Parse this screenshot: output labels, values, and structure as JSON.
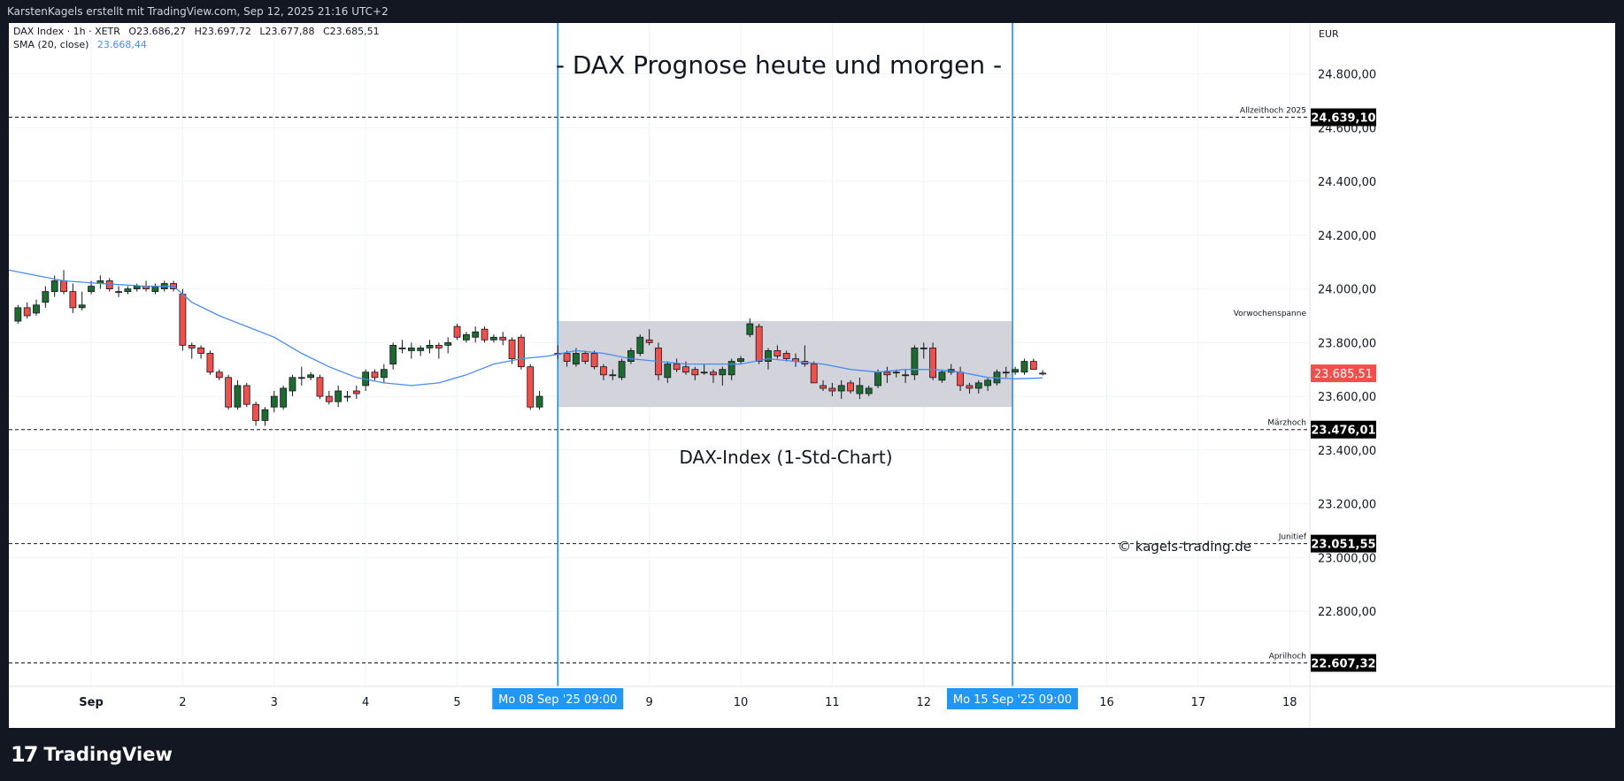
{
  "header": {
    "attribution": "KarstenKagels erstellt mit TradingView.com, Sep 12, 2025 21:16 UTC+2"
  },
  "legend": {
    "symbol": "DAX Index · 1h · XETR",
    "open": "O23.686,27",
    "high": "H23.697,72",
    "low": "L23.677,88",
    "close": "C23.685,51",
    "sma_label": "SMA (20, close)",
    "sma_value": "23.668,44"
  },
  "annotations": {
    "title": "- DAX Prognose heute und morgen -",
    "subtitle": "DAX-Index (1-Std-Chart)",
    "copyright": "© kagels-trading.de"
  },
  "footer": {
    "logo": "17",
    "brand": "TradingView"
  },
  "colors": {
    "up": "#1e6b30",
    "down": "#f0504b",
    "sma": "#4a8cf0",
    "range_box": "#d1d1d9",
    "vertical_line": "#1e88e5",
    "label_bg": "#2196f3"
  },
  "chart_data": {
    "type": "candlestick",
    "title": "- DAX Prognose heute und morgen -",
    "currency": "EUR",
    "ylim": [
      22520,
      24990
    ],
    "y_ticks": [
      "24.800,00",
      "24.600,00",
      "24.400,00",
      "24.200,00",
      "24.000,00",
      "23.800,00",
      "23.600,00",
      "23.400,00",
      "23.200,00",
      "23.000,00",
      "22.800,00"
    ],
    "y_tick_values": [
      24800,
      24600,
      24400,
      24200,
      24000,
      23800,
      23600,
      23400,
      23200,
      23000,
      22800
    ],
    "x_labels": [
      {
        "label": "Sep",
        "t": 8
      },
      {
        "label": "2",
        "t": 18
      },
      {
        "label": "3",
        "t": 28
      },
      {
        "label": "4",
        "t": 38
      },
      {
        "label": "5",
        "t": 48
      },
      {
        "label": "9",
        "t": 69
      },
      {
        "label": "10",
        "t": 79
      },
      {
        "label": "11",
        "t": 89
      },
      {
        "label": "12",
        "t": 99
      },
      {
        "label": "16",
        "t": 119
      },
      {
        "label": "17",
        "t": 129
      },
      {
        "label": "18",
        "t": 139
      }
    ],
    "t_range": [
      -1,
      141.2
    ],
    "levels": [
      {
        "name": "Allzeithoch 2025",
        "value": 24639.1,
        "label": "24.639,10"
      },
      {
        "name": "Märzhoch",
        "value": 23476.01,
        "label": "23.476,01"
      },
      {
        "name": "Junitief",
        "value": 23051.55,
        "label": "23.051,55"
      },
      {
        "name": "Aprilhoch",
        "value": 22607.32,
        "label": "22.607,32"
      }
    ],
    "last_price": {
      "value": 23685.51,
      "label": "23.685,51"
    },
    "range_box": {
      "name": "Vorwochenspanne",
      "low": 23560,
      "high": 23880,
      "t_start": 59,
      "t_end": 108.7
    },
    "vertical_markers": [
      {
        "label": "Mo 08 Sep '25   09:00",
        "t": 59
      },
      {
        "label": "Mo 15 Sep '25   09:00",
        "t": 108.7
      }
    ],
    "candles": [
      [
        0,
        23880,
        23940,
        23870,
        23930
      ],
      [
        1,
        23930,
        23950,
        23890,
        23900
      ],
      [
        2,
        23910,
        23960,
        23900,
        23940
      ],
      [
        3,
        23950,
        24010,
        23930,
        23990
      ],
      [
        4,
        23990,
        24050,
        23970,
        24030
      ],
      [
        5,
        24030,
        24070,
        23980,
        23990
      ],
      [
        6,
        23990,
        24020,
        23910,
        23930
      ],
      [
        7,
        23930,
        23990,
        23920,
        23940
      ],
      [
        8,
        23990,
        24030,
        23980,
        24010
      ],
      [
        9,
        24020,
        24050,
        24000,
        24030
      ],
      [
        10,
        24030,
        24040,
        23990,
        24000
      ],
      [
        11,
        23990,
        24010,
        23970,
        23990
      ],
      [
        12,
        23990,
        24010,
        23980,
        24000
      ],
      [
        13,
        24000,
        24020,
        23990,
        24010
      ],
      [
        14,
        24010,
        24030,
        23990,
        24000
      ],
      [
        15,
        23990,
        24020,
        23980,
        24010
      ],
      [
        16,
        24000,
        24030,
        23990,
        24020
      ],
      [
        17,
        24020,
        24030,
        23990,
        24000
      ],
      [
        18,
        23980,
        24000,
        23770,
        23790
      ],
      [
        19,
        23790,
        23800,
        23740,
        23780
      ],
      [
        20,
        23780,
        23790,
        23740,
        23760
      ],
      [
        21,
        23760,
        23770,
        23680,
        23690
      ],
      [
        22,
        23690,
        23700,
        23660,
        23670
      ],
      [
        23,
        23670,
        23680,
        23550,
        23560
      ],
      [
        24,
        23560,
        23660,
        23550,
        23640
      ],
      [
        25,
        23640,
        23650,
        23560,
        23570
      ],
      [
        26,
        23570,
        23580,
        23490,
        23510
      ],
      [
        27,
        23510,
        23560,
        23490,
        23550
      ],
      [
        28,
        23560,
        23620,
        23540,
        23600
      ],
      [
        29,
        23560,
        23640,
        23550,
        23630
      ],
      [
        30,
        23620,
        23680,
        23600,
        23670
      ],
      [
        31,
        23670,
        23710,
        23640,
        23670
      ],
      [
        32,
        23670,
        23690,
        23660,
        23680
      ],
      [
        33,
        23670,
        23680,
        23590,
        23600
      ],
      [
        34,
        23600,
        23620,
        23570,
        23580
      ],
      [
        35,
        23580,
        23640,
        23560,
        23620
      ],
      [
        36,
        23600,
        23620,
        23580,
        23600
      ],
      [
        37,
        23620,
        23640,
        23590,
        23610
      ],
      [
        38,
        23640,
        23700,
        23620,
        23690
      ],
      [
        39,
        23690,
        23700,
        23660,
        23670
      ],
      [
        40,
        23670,
        23720,
        23650,
        23700
      ],
      [
        41,
        23720,
        23800,
        23700,
        23790
      ],
      [
        42,
        23780,
        23810,
        23760,
        23780
      ],
      [
        43,
        23770,
        23800,
        23740,
        23780
      ],
      [
        44,
        23770,
        23790,
        23750,
        23780
      ],
      [
        45,
        23780,
        23810,
        23760,
        23790
      ],
      [
        46,
        23790,
        23800,
        23740,
        23780
      ],
      [
        47,
        23790,
        23820,
        23760,
        23800
      ],
      [
        48,
        23860,
        23870,
        23810,
        23820
      ],
      [
        49,
        23810,
        23840,
        23800,
        23830
      ],
      [
        50,
        23820,
        23860,
        23800,
        23840
      ],
      [
        51,
        23850,
        23860,
        23800,
        23810
      ],
      [
        52,
        23810,
        23830,
        23800,
        23820
      ],
      [
        53,
        23820,
        23840,
        23790,
        23810
      ],
      [
        54,
        23810,
        23820,
        23720,
        23740
      ],
      [
        55,
        23820,
        23830,
        23700,
        23710
      ],
      [
        56,
        23710,
        23720,
        23550,
        23560
      ],
      [
        57,
        23560,
        23620,
        23550,
        23600
      ],
      [
        59,
        23760,
        23790,
        23740,
        23760
      ],
      [
        60,
        23760,
        23770,
        23710,
        23730
      ],
      [
        61,
        23720,
        23780,
        23710,
        23760
      ],
      [
        62,
        23760,
        23770,
        23720,
        23730
      ],
      [
        63,
        23760,
        23770,
        23700,
        23710
      ],
      [
        64,
        23710,
        23720,
        23660,
        23680
      ],
      [
        65,
        23680,
        23700,
        23660,
        23680
      ],
      [
        66,
        23670,
        23740,
        23660,
        23730
      ],
      [
        67,
        23730,
        23780,
        23720,
        23770
      ],
      [
        68,
        23760,
        23830,
        23750,
        23820
      ],
      [
        69,
        23810,
        23850,
        23790,
        23800
      ],
      [
        70,
        23780,
        23800,
        23660,
        23680
      ],
      [
        71,
        23670,
        23730,
        23650,
        23720
      ],
      [
        72,
        23720,
        23740,
        23690,
        23700
      ],
      [
        73,
        23710,
        23730,
        23680,
        23690
      ],
      [
        74,
        23700,
        23710,
        23660,
        23680
      ],
      [
        75,
        23690,
        23720,
        23680,
        23690
      ],
      [
        76,
        23690,
        23700,
        23650,
        23680
      ],
      [
        77,
        23680,
        23710,
        23640,
        23700
      ],
      [
        78,
        23680,
        23740,
        23660,
        23730
      ],
      [
        79,
        23730,
        23750,
        23720,
        23740
      ],
      [
        80,
        23830,
        23890,
        23820,
        23870
      ],
      [
        81,
        23860,
        23870,
        23720,
        23730
      ],
      [
        82,
        23730,
        23780,
        23700,
        23770
      ],
      [
        83,
        23770,
        23790,
        23740,
        23750
      ],
      [
        84,
        23760,
        23770,
        23730,
        23740
      ],
      [
        85,
        23740,
        23760,
        23710,
        23730
      ],
      [
        86,
        23730,
        23790,
        23710,
        23720
      ],
      [
        87,
        23720,
        23730,
        23650,
        23650
      ],
      [
        88,
        23640,
        23660,
        23620,
        23630
      ],
      [
        89,
        23630,
        23650,
        23600,
        23620
      ],
      [
        90,
        23620,
        23660,
        23590,
        23640
      ],
      [
        91,
        23650,
        23660,
        23610,
        23620
      ],
      [
        92,
        23610,
        23670,
        23590,
        23640
      ],
      [
        93,
        23610,
        23640,
        23600,
        23630
      ],
      [
        94,
        23640,
        23700,
        23630,
        23690
      ],
      [
        95,
        23690,
        23710,
        23650,
        23680
      ],
      [
        96,
        23690,
        23700,
        23670,
        23690
      ],
      [
        97,
        23680,
        23700,
        23650,
        23680
      ],
      [
        98,
        23680,
        23790,
        23660,
        23780
      ],
      [
        99,
        23780,
        23800,
        23740,
        23780
      ],
      [
        100,
        23780,
        23800,
        23660,
        23670
      ],
      [
        101,
        23660,
        23700,
        23650,
        23690
      ],
      [
        102,
        23690,
        23720,
        23680,
        23700
      ],
      [
        103,
        23690,
        23710,
        23620,
        23640
      ],
      [
        104,
        23640,
        23650,
        23610,
        23630
      ],
      [
        105,
        23630,
        23660,
        23610,
        23650
      ],
      [
        106,
        23640,
        23670,
        23620,
        23660
      ],
      [
        107,
        23650,
        23700,
        23640,
        23690
      ],
      [
        108,
        23690,
        23710,
        23670,
        23690
      ],
      [
        109,
        23690,
        23710,
        23680,
        23700
      ],
      [
        110,
        23690,
        23740,
        23680,
        23730
      ],
      [
        111,
        23730,
        23740,
        23700,
        23700
      ],
      [
        112,
        23686.27,
        23697.72,
        23677.88,
        23685.51
      ]
    ],
    "sma": [
      [
        -1,
        24070
      ],
      [
        5,
        24030
      ],
      [
        9,
        24020
      ],
      [
        14,
        24010
      ],
      [
        17,
        24010
      ],
      [
        19,
        23950
      ],
      [
        22,
        23900
      ],
      [
        25,
        23860
      ],
      [
        28,
        23820
      ],
      [
        31,
        23760
      ],
      [
        34,
        23710
      ],
      [
        37,
        23670
      ],
      [
        40,
        23650
      ],
      [
        43,
        23640
      ],
      [
        46,
        23650
      ],
      [
        49,
        23680
      ],
      [
        52,
        23720
      ],
      [
        55,
        23740
      ],
      [
        58,
        23750
      ],
      [
        61,
        23770
      ],
      [
        64,
        23760
      ],
      [
        67,
        23740
      ],
      [
        70,
        23730
      ],
      [
        73,
        23720
      ],
      [
        76,
        23720
      ],
      [
        79,
        23720
      ],
      [
        82,
        23740
      ],
      [
        85,
        23730
      ],
      [
        88,
        23720
      ],
      [
        91,
        23700
      ],
      [
        94,
        23690
      ],
      [
        97,
        23700
      ],
      [
        100,
        23700
      ],
      [
        103,
        23690
      ],
      [
        106,
        23670
      ],
      [
        109,
        23665
      ],
      [
        112,
        23668.44
      ]
    ]
  }
}
